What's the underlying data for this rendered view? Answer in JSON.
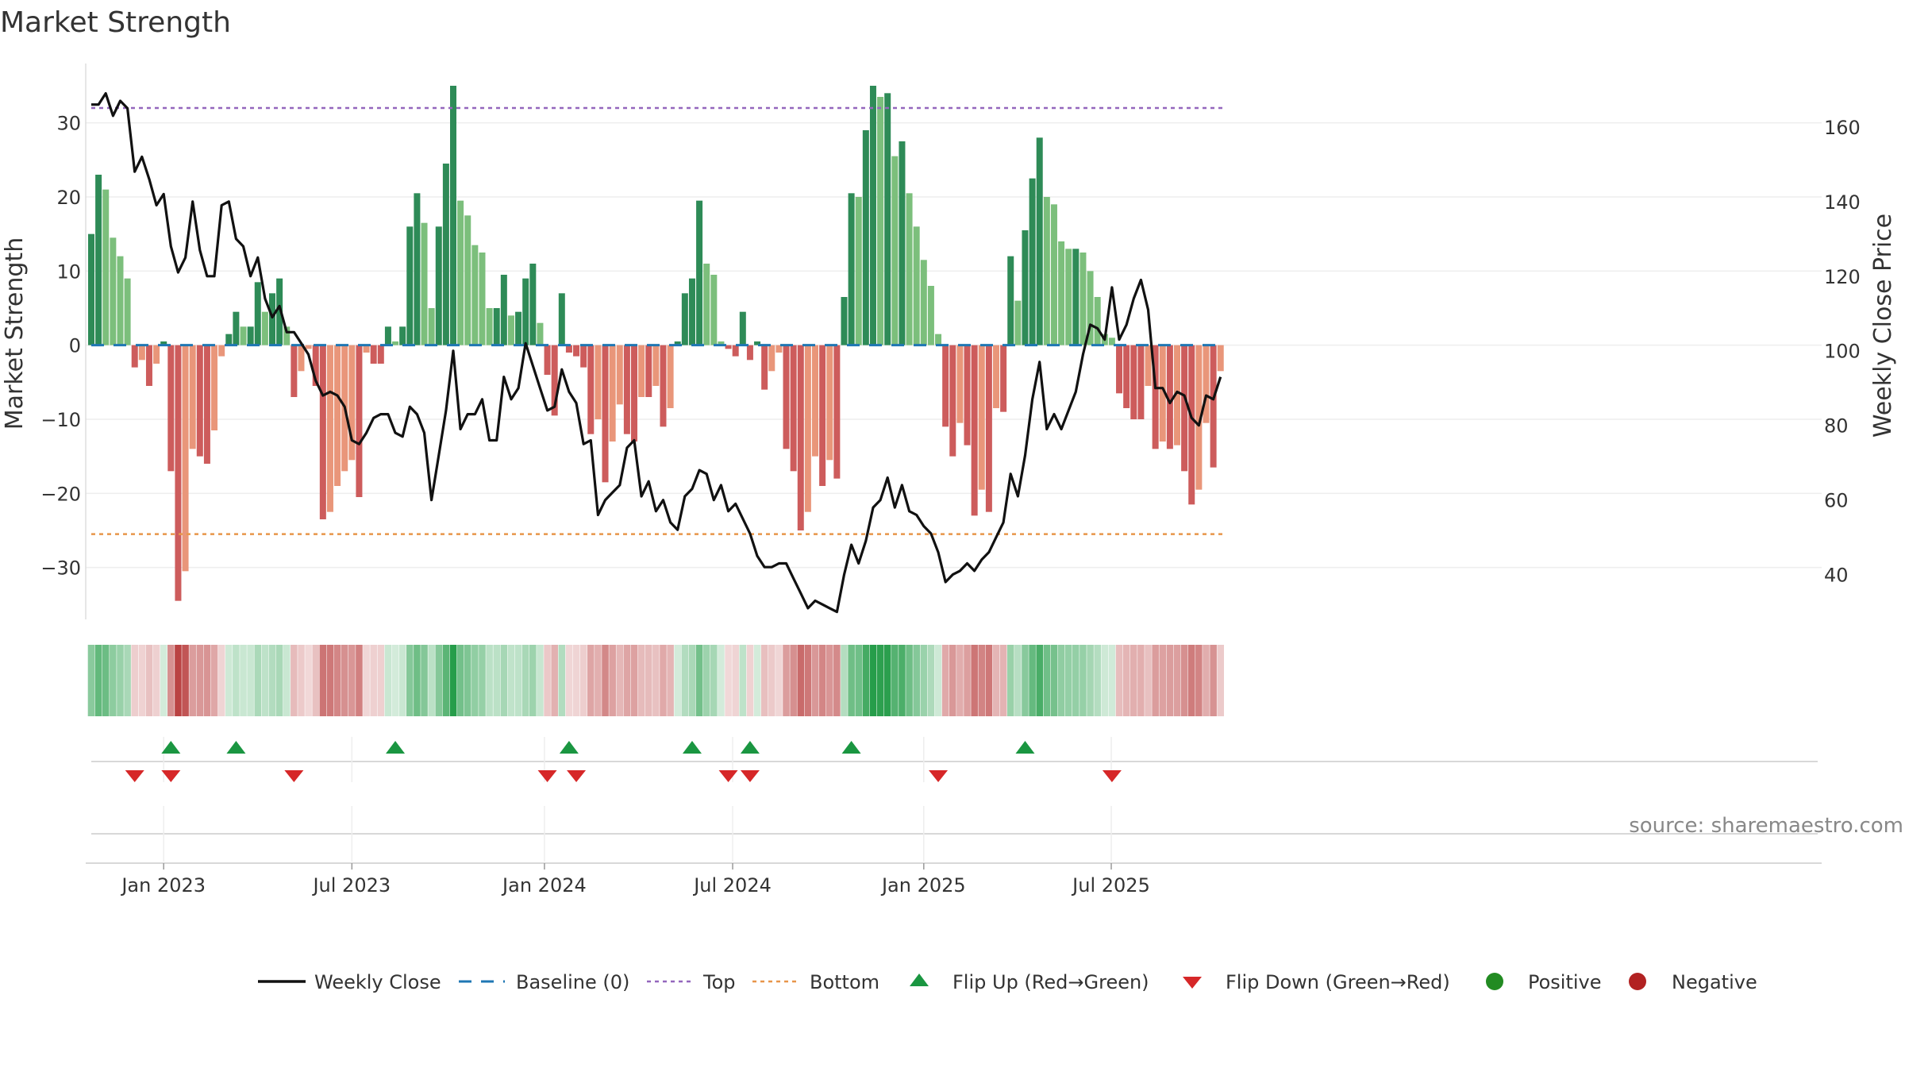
{
  "chart_data": {
    "type": "bar",
    "title": "Market Strength",
    "ylabel": "Market Strength",
    "y2label": "Weekly Close Price",
    "ylim": [
      -37,
      38
    ],
    "y2lim": [
      28,
      177
    ],
    "yticks": [
      30,
      20,
      10,
      0,
      -10,
      -20,
      -30
    ],
    "ytick_labels": [
      "30",
      "20",
      "10",
      "0",
      "−10",
      "−20",
      "−30"
    ],
    "y2ticks": [
      160,
      140,
      120,
      100,
      80,
      60,
      40
    ],
    "y2tick_labels": [
      "160",
      "140",
      "120",
      "100",
      "80",
      "60",
      "40"
    ],
    "top_level": 32,
    "bottom_level": -25.5,
    "x_start": "2022-10-24",
    "x_step_days": 7,
    "x_ticks": [
      {
        "label": "Jan 2023",
        "index": 10
      },
      {
        "label": "Jul 2023",
        "index": 36
      },
      {
        "label": "Jan 2024",
        "index": 62.6
      },
      {
        "label": "Jul 2024",
        "index": 88.6
      },
      {
        "label": "Jan 2025",
        "index": 115
      },
      {
        "label": "Jul 2025",
        "index": 140.9
      }
    ],
    "strength": [
      15,
      23,
      21,
      14.5,
      12,
      9,
      -3,
      -2,
      -5.5,
      -2.5,
      0.5,
      -17,
      -34.5,
      -30.5,
      -14,
      -15,
      -16,
      -11.5,
      -1.5,
      1.5,
      4.5,
      2.5,
      2.5,
      8.5,
      4.5,
      7,
      9,
      2.5,
      -7,
      -3.5,
      -0.5,
      -5.5,
      -23.5,
      -22.5,
      -19,
      -17,
      -15.5,
      -20.5,
      -1,
      -2.5,
      -2.5,
      2.5,
      0.5,
      2.5,
      16,
      20.5,
      16.5,
      5,
      16,
      24.5,
      35,
      19.5,
      17.5,
      13.5,
      12.5,
      5,
      5,
      9.5,
      4,
      4.5,
      9,
      11,
      3,
      -4,
      -9.5,
      7,
      -1,
      -1.5,
      -3,
      -12,
      -10,
      -18.5,
      -13,
      -8,
      -12,
      -13,
      -7,
      -7,
      -5.5,
      -11,
      -8.5,
      0.5,
      7,
      9,
      19.5,
      11,
      9.5,
      0.5,
      -0.5,
      -1.5,
      4.5,
      -2,
      0.5,
      -6,
      -3.5,
      -1,
      -14,
      -17,
      -25,
      -22.5,
      -15,
      -19,
      -15.5,
      -18,
      6.5,
      20.5,
      20,
      29,
      35,
      33.5,
      34,
      25.5,
      27.5,
      20.5,
      16,
      11.5,
      8,
      1.5,
      -11,
      -15,
      -10.5,
      -13.5,
      -23,
      -19.5,
      -22.5,
      -8.5,
      -9,
      12,
      6,
      15.5,
      22.5,
      28,
      20,
      19,
      14,
      13,
      13,
      12.5,
      10,
      6.5,
      1.5,
      1,
      -6.5,
      -8.5,
      -10,
      -10,
      -5.5,
      -14,
      -13,
      -14,
      -13.5,
      -17,
      -21.5,
      -19.5,
      -10.5,
      -16.5,
      -3.5
    ],
    "price": [
      166,
      166,
      169,
      163,
      167,
      165,
      148,
      152,
      146,
      139,
      142,
      128,
      121,
      125,
      140,
      127,
      120,
      120,
      139,
      140,
      130,
      128,
      120,
      125,
      114,
      109,
      112,
      105,
      105,
      102,
      99,
      92,
      88,
      89,
      88,
      85,
      76,
      75,
      78,
      82,
      83,
      83,
      78,
      77,
      85,
      83,
      78,
      60,
      72,
      84,
      100,
      79,
      83,
      83,
      87,
      76,
      76,
      93,
      87,
      90,
      102,
      96,
      90,
      84,
      85,
      95,
      89,
      86,
      75,
      76,
      56,
      60,
      62,
      64,
      74,
      76,
      61,
      65,
      57,
      60,
      54,
      52,
      61,
      63,
      68,
      67,
      60,
      64,
      57,
      59,
      55,
      51,
      45,
      42,
      42,
      43,
      43,
      39,
      35,
      31,
      33,
      32,
      31,
      30,
      40,
      48,
      43,
      49,
      58,
      60,
      66,
      58,
      64,
      57,
      56,
      53,
      51,
      46,
      38,
      40,
      41,
      43,
      41,
      44,
      46,
      50,
      54,
      67,
      61,
      72,
      87,
      97,
      79,
      83,
      79,
      84,
      89,
      99,
      107,
      106,
      103,
      117,
      103,
      107,
      114,
      119,
      111,
      90,
      90,
      86,
      89,
      88,
      82,
      80,
      88,
      87,
      93
    ],
    "flip_up_indices": [
      11,
      20,
      42,
      66,
      83,
      91,
      105,
      129
    ],
    "flip_down_indices": [
      6,
      11,
      28,
      63,
      67,
      88,
      91,
      117,
      141
    ],
    "legend": [
      {
        "label": "Weekly Close",
        "marker": "line"
      },
      {
        "label": "Baseline (0)",
        "marker": "dash"
      },
      {
        "label": "Top",
        "marker": "dotted"
      },
      {
        "label": "Bottom",
        "marker": "dotted"
      },
      {
        "label": "Flip Up (Red→Green)",
        "marker": "triangle-up"
      },
      {
        "label": "Flip Down (Green→Red)",
        "marker": "triangle-down"
      },
      {
        "label": "Positive",
        "marker": "circle"
      },
      {
        "label": "Negative",
        "marker": "circle"
      }
    ]
  },
  "source": "source: sharemaestro.com",
  "colors": {
    "pos_strong": "#2e8b57",
    "pos_weak": "#7cbf7c",
    "neg_strong": "#cd5c5c",
    "neg_weak": "#e9967a",
    "price_line": "#111111",
    "baseline": "#1f77b4",
    "top_line": "#9467bd",
    "bottom_line": "#e8964a",
    "flip_up": "#1a9641",
    "flip_down": "#d62728",
    "positive": "#228b22",
    "negative": "#b22222"
  }
}
